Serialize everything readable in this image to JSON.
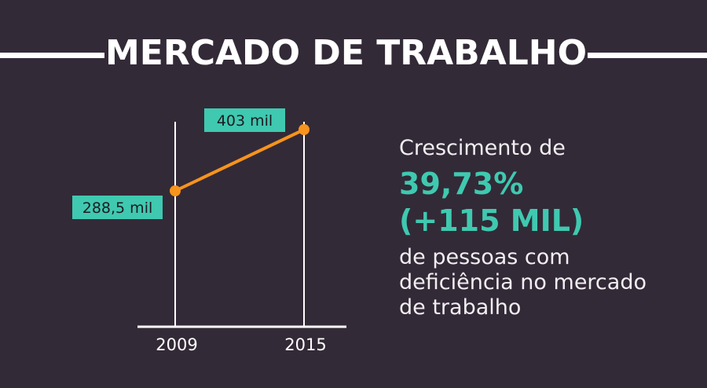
{
  "header": {
    "title": "MERCADO DE TRABALHO"
  },
  "chart_data": {
    "type": "line",
    "categories": [
      "2009",
      "2015"
    ],
    "values": [
      288.5,
      403
    ],
    "data_labels": [
      "288,5 mil",
      "403 mil"
    ],
    "title": "",
    "xlabel": "",
    "ylabel": "",
    "grid": false
  },
  "stats": {
    "intro": "Crescimento de",
    "percent": "39,73%",
    "increase": "(+115 MIL)",
    "description": "de pessoas com deficiência no mercado de trabalho"
  },
  "colors": {
    "background": "#332a37",
    "line": "#f7941d",
    "label_bg": "#3fc9b0",
    "accent_text": "#3fc9b0",
    "axis": "#ffffff"
  }
}
